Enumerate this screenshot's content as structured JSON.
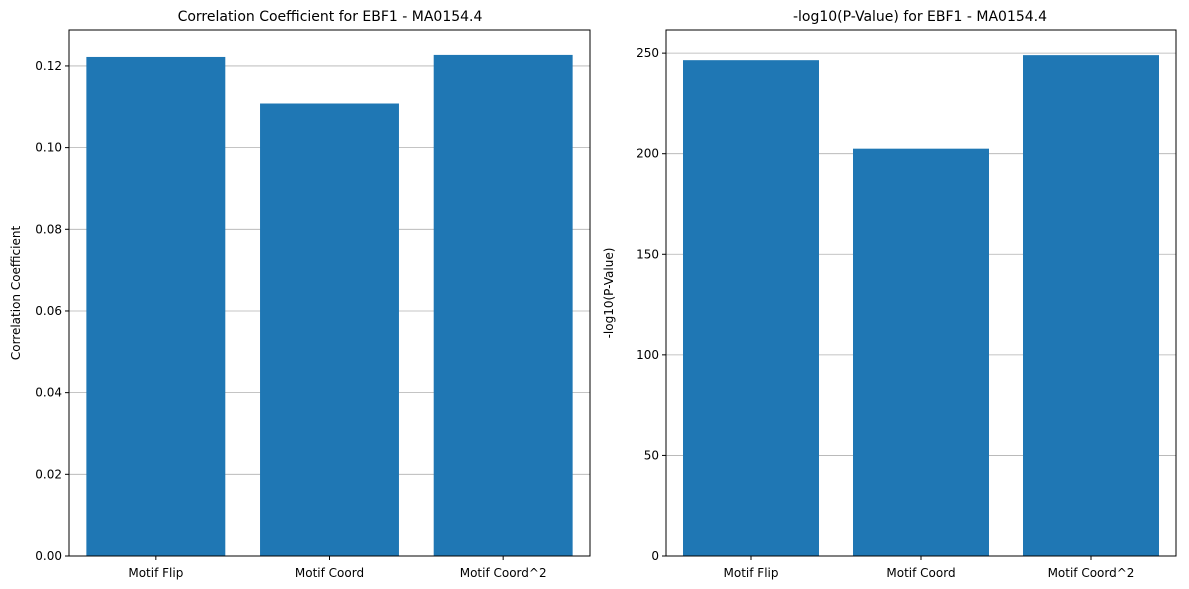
{
  "chart_data": [
    {
      "type": "bar",
      "title": "Correlation Coefficient for EBF1 - MA0154.4",
      "xlabel": "",
      "ylabel": "Correlation Coefficient",
      "categories": [
        "Motif Flip",
        "Motif Coord",
        "Motif Coord^2"
      ],
      "values": [
        0.1222,
        0.1108,
        0.1227
      ],
      "ylim": [
        0,
        0.1288
      ],
      "yticks": [
        0.0,
        0.02,
        0.04,
        0.06,
        0.08,
        0.1,
        0.12
      ],
      "ytick_labels": [
        "0.00",
        "0.02",
        "0.04",
        "0.06",
        "0.08",
        "0.10",
        "0.12"
      ],
      "grid": "y",
      "bar_color": "#1f77b4"
    },
    {
      "type": "bar",
      "title": "-log10(P-Value) for EBF1 - MA0154.4",
      "xlabel": "",
      "ylabel": "-log10(P-Value)",
      "categories": [
        "Motif Flip",
        "Motif Coord",
        "Motif Coord^2"
      ],
      "values": [
        246.5,
        202.5,
        249
      ],
      "ylim": [
        0,
        261.5
      ],
      "yticks": [
        0,
        50,
        100,
        150,
        200,
        250
      ],
      "ytick_labels": [
        "0",
        "50",
        "100",
        "150",
        "200",
        "250"
      ],
      "grid": "y",
      "bar_color": "#1f77b4"
    }
  ]
}
